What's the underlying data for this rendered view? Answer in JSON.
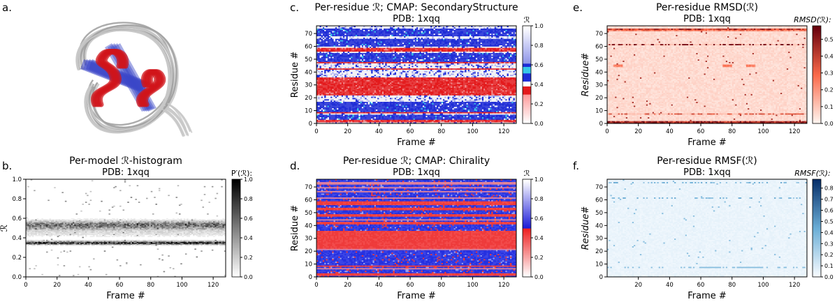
{
  "figure": {
    "panel_letters": [
      "a.",
      "b.",
      "c.",
      "d.",
      "e.",
      "f."
    ],
    "colors": {
      "helix": "#d0141a",
      "sheet": "#3a46c8",
      "coil": "#c8c8c8",
      "reds_max": "#67000d",
      "blues_max": "#08306b",
      "ss_red": "#e31a1c",
      "ss_blue": "#1f2dd6",
      "ss_cyan": "#38c7e8"
    }
  },
  "chart_data": [
    {
      "panel": "a.",
      "type": "other",
      "content": "superposed 3D protein structure models (ribbon): red helices, blue strands, grey coils"
    },
    {
      "panel": "b.",
      "type": "heatmap",
      "title": "Per-model ℛ-histogram",
      "subtitle": "PDB: 1xqq",
      "xlabel": "Frame #",
      "ylabel": "ℛ",
      "xlim": [
        0,
        128
      ],
      "ylim": [
        0,
        1
      ],
      "xticks": [
        "0",
        "20",
        "40",
        "60",
        "80",
        "100",
        "120"
      ],
      "yticks": [
        "0.0",
        "0.2",
        "0.4",
        "0.6",
        "0.8",
        "1.0"
      ],
      "colorbar_label": "P′(ℛ):",
      "colorbar_ticks": [
        "0.0",
        "0.2",
        "0.4",
        "0.6",
        "0.8",
        "1.0"
      ],
      "colormap": "Greys",
      "bands": [
        {
          "center": 0.35,
          "width": 0.012,
          "peak": 0.9
        },
        {
          "center": 0.53,
          "width": 0.03,
          "peak": 0.6
        },
        {
          "center": 0.45,
          "width": 0.03,
          "peak": 0.12
        }
      ]
    },
    {
      "panel": "c.",
      "type": "heatmap",
      "title": "Per-residue ℛ; CMAP: SecondaryStructure",
      "subtitle": "PDB: 1xqq",
      "xlabel": "Frame #",
      "ylabel": "Residue #",
      "xlim": [
        0,
        128
      ],
      "ylim": [
        0,
        76
      ],
      "xticks": [
        "0",
        "20",
        "40",
        "60",
        "80",
        "100",
        "120"
      ],
      "yticks": [
        "0",
        "10",
        "20",
        "30",
        "40",
        "50",
        "60",
        "70"
      ],
      "colorbar_label": "ℛ",
      "colorbar_ticks": [
        "0.0",
        "0.2",
        "0.4",
        "0.6",
        "0.8",
        "1.0"
      ],
      "colormap": "SecondaryStructure",
      "red_residues": [
        [
          1,
          2
        ],
        [
          8,
          8
        ],
        [
          22,
          35
        ],
        [
          42,
          42
        ],
        [
          47,
          47
        ],
        [
          56,
          58
        ]
      ],
      "white_residues": [
        [
          0,
          0
        ],
        [
          7,
          7
        ],
        [
          17,
          21
        ],
        [
          36,
          41
        ],
        [
          43,
          46
        ],
        [
          55,
          55
        ],
        [
          59,
          59
        ],
        [
          66,
          67
        ],
        [
          74,
          75
        ]
      ]
    },
    {
      "panel": "d.",
      "type": "heatmap",
      "title": "Per-residue ℛ; CMAP: Chirality",
      "subtitle": "PDB: 1xqq",
      "xlabel": "Frame #",
      "ylabel": "Residue #",
      "xlim": [
        0,
        128
      ],
      "ylim": [
        0,
        76
      ],
      "xticks": [
        "0",
        "20",
        "40",
        "60",
        "80",
        "100",
        "120"
      ],
      "yticks": [
        "0",
        "10",
        "20",
        "30",
        "40",
        "50",
        "60",
        "70"
      ],
      "colorbar_label": "ℛ",
      "colorbar_ticks": [
        "0.0",
        "0.2",
        "0.4",
        "0.6",
        "0.8",
        "1.0"
      ],
      "colormap": "Chirality",
      "red_residues": [
        [
          1,
          2
        ],
        [
          8,
          8
        ],
        [
          22,
          35
        ],
        [
          41,
          42
        ],
        [
          47,
          48
        ],
        [
          52,
          53
        ],
        [
          56,
          58
        ]
      ],
      "pink_residues": [
        [
          6,
          6
        ],
        [
          21,
          21
        ],
        [
          44,
          44
        ],
        [
          61,
          61
        ],
        [
          66,
          66
        ],
        [
          69,
          69
        ],
        [
          72,
          73
        ]
      ]
    },
    {
      "panel": "e.",
      "type": "heatmap",
      "title": "Per-residue RMSD(ℛ)",
      "subtitle": "PDB: 1xqq",
      "xlabel": "Frame #",
      "ylabel": "Residue#",
      "xlim": [
        0,
        128
      ],
      "ylim": [
        0,
        76
      ],
      "xticks": [
        "0",
        "20",
        "40",
        "60",
        "80",
        "100",
        "120"
      ],
      "yticks": [
        "0",
        "10",
        "20",
        "30",
        "40",
        "50",
        "60",
        "70"
      ],
      "colorbar_label": "RMSD(ℛ):",
      "colorbar_ticks": [
        "0.0",
        "0.1",
        "0.2",
        "0.3",
        "0.4",
        "0.5"
      ],
      "cmax": 0.58,
      "colormap": "Reds",
      "rows": [
        {
          "residue": 0,
          "level": 0.55
        },
        {
          "residue": 1,
          "level": 0.5
        },
        {
          "residue": 73,
          "level": 0.45
        },
        {
          "residue": 72,
          "level": 0.3
        },
        {
          "residue": 61,
          "level": 0.5
        },
        {
          "residue": 7,
          "level": 0.3
        },
        {
          "residue": 45,
          "level": 0.22
        },
        {
          "residue": 44,
          "level": 0.18
        }
      ]
    },
    {
      "panel": "f.",
      "type": "heatmap",
      "title": "Per-residue RMSF(ℛ)",
      "subtitle": "PDB: 1xqq",
      "xlabel": "Frame #",
      "ylabel": "Residue#",
      "xlim": [
        0,
        128
      ],
      "ylim": [
        0,
        76
      ],
      "xticks": [
        "20",
        "40",
        "60",
        "80",
        "100",
        "120"
      ],
      "yticks": [
        "0",
        "10",
        "20",
        "30",
        "40",
        "50",
        "60",
        "70"
      ],
      "colorbar_label": "RMSF(ℛ):",
      "colorbar_ticks": [
        "0.0",
        "0.1",
        "0.2",
        "0.3",
        "0.4",
        "0.5",
        "0.6",
        "0.7",
        "0.8"
      ],
      "cmax": 0.88,
      "colormap": "Blues",
      "rows": [
        {
          "residue": 73,
          "level": 0.4
        },
        {
          "residue": 61,
          "level": 0.4
        },
        {
          "residue": 7,
          "level": 0.35
        },
        {
          "residue": 0,
          "level": 0.1
        }
      ]
    }
  ]
}
